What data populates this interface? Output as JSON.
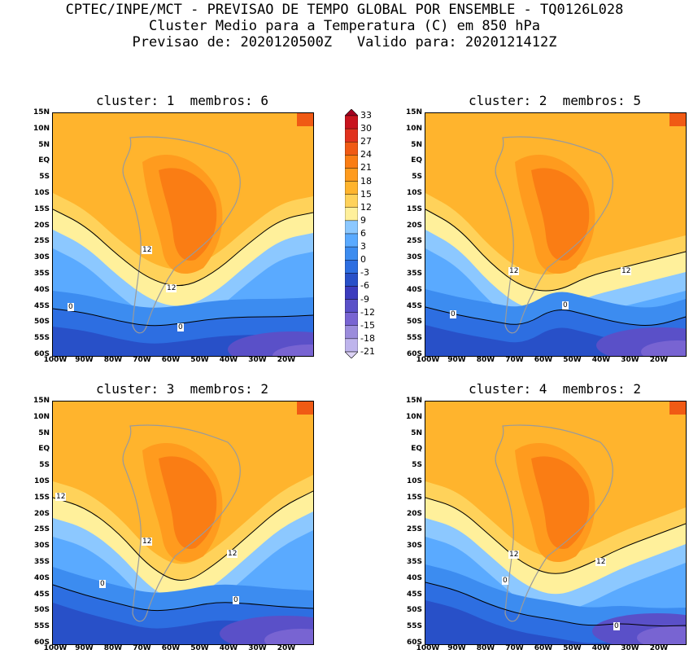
{
  "header": {
    "line1": "CPTEC/INPE/MCT - PREVISAO DE TEMPO GLOBAL POR ENSEMBLE - TQ0126L028",
    "line2": "Cluster Medio para a Temperatura (C) em 850 hPa",
    "line3": "Previsao de: 2020120500Z   Valido para: 2020121412Z"
  },
  "panels": [
    {
      "title": "cluster: 1  membros: 6"
    },
    {
      "title": "cluster: 2  membros: 5"
    },
    {
      "title": "cluster: 3  membros: 2"
    },
    {
      "title": "cluster: 4  membros: 2"
    }
  ],
  "lat_labels": [
    "15N",
    "10N",
    "5N",
    "EQ",
    "5S",
    "10S",
    "15S",
    "20S",
    "25S",
    "30S",
    "35S",
    "40S",
    "45S",
    "50S",
    "55S",
    "60S"
  ],
  "lon_labels": [
    "100W",
    "90W",
    "80W",
    "70W",
    "60W",
    "50W",
    "40W",
    "30W",
    "20W"
  ],
  "colorbar": {
    "levels": [
      "33",
      "30",
      "27",
      "24",
      "21",
      "18",
      "15",
      "12",
      "9",
      "6",
      "3",
      "0",
      "-3",
      "-6",
      "-9",
      "-12",
      "-15",
      "-18",
      "-21"
    ],
    "colors": [
      "#a5001e",
      "#c8141e",
      "#e1321e",
      "#f05a14",
      "#fa7d14",
      "#ff9b1e",
      "#ffb42d",
      "#ffd25a",
      "#fff09b",
      "#8cc8ff",
      "#5aaaff",
      "#3c8cf0",
      "#2d6ee1",
      "#2850c8",
      "#3c3cbe",
      "#5a50c8",
      "#7864d2",
      "#9b8cdc",
      "#beb4ec",
      "#dcd2f5"
    ]
  },
  "contour_labels": {
    "p1": [
      "12",
      "12",
      "0",
      "0"
    ],
    "p2": [
      "12",
      "12",
      "0",
      "0"
    ],
    "p3": [
      "12",
      "12",
      "12",
      "0",
      "0"
    ],
    "p4": [
      "12",
      "12",
      "0",
      "0"
    ]
  }
}
